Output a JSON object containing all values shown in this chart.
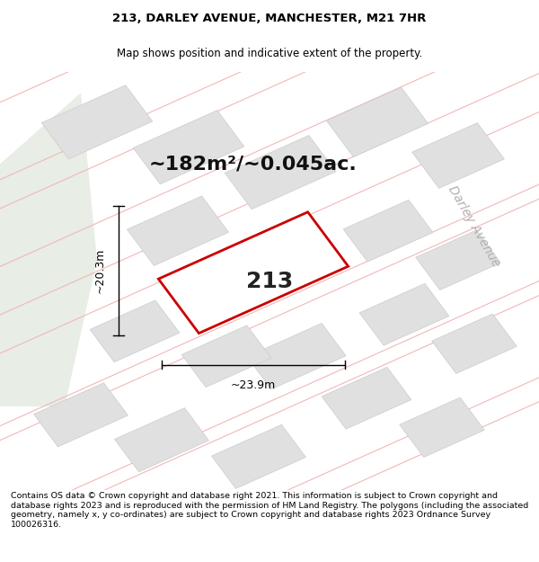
{
  "title_line1": "213, DARLEY AVENUE, MANCHESTER, M21 7HR",
  "title_line2": "Map shows position and indicative extent of the property.",
  "footer_text": "Contains OS data © Crown copyright and database right 2021. This information is subject to Crown copyright and database rights 2023 and is reproduced with the permission of HM Land Registry. The polygons (including the associated geometry, namely x, y co-ordinates) are subject to Crown copyright and database rights 2023 Ordnance Survey 100026316.",
  "area_label": "~182m²/~0.045ac.",
  "number_label": "213",
  "width_label": "~23.9m",
  "height_label": "~20.3m",
  "street_label": "Darley Avenue",
  "map_bg": "#f9f9f9",
  "road_line_color": "#f0b8b8",
  "block_fill": "#e0e0e0",
  "block_edge": "#cccccc",
  "green_fill": "#e8ede6",
  "plot_fill": "#ffffff",
  "plot_edge": "#cc0000",
  "title_fontsize": 9.5,
  "subtitle_fontsize": 8.5,
  "footer_fontsize": 6.8,
  "area_fontsize": 16,
  "number_fontsize": 18,
  "dim_fontsize": 9,
  "street_fontsize": 10
}
